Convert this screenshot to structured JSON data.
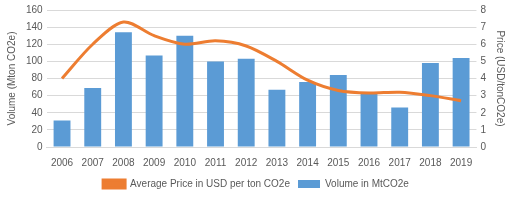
{
  "chart_data": {
    "type": "bar",
    "categories": [
      "2006",
      "2007",
      "2008",
      "2009",
      "2010",
      "2011",
      "2012",
      "2013",
      "2014",
      "2015",
      "2016",
      "2017",
      "2018",
      "2019"
    ],
    "series": [
      {
        "name": "Volume in MtCO2e",
        "type": "bar",
        "color": "#5b9bd5",
        "values": [
          31,
          69,
          134,
          107,
          130,
          100,
          103,
          67,
          76,
          84,
          62,
          46,
          98,
          104
        ]
      },
      {
        "name": "Average Price in USD per ton CO2e",
        "type": "line",
        "color": "#ed7d31",
        "axis": "y2",
        "values": [
          4.0,
          6.0,
          7.3,
          6.5,
          6.0,
          6.2,
          5.9,
          5.0,
          3.9,
          3.3,
          3.15,
          3.2,
          3.0,
          2.7
        ]
      }
    ],
    "y_label": "Volume (Mton CO2e)",
    "y2_label": "Price (USD/tonCO2e)",
    "ylim": [
      0,
      160
    ],
    "yticks": [
      0,
      20,
      40,
      60,
      80,
      100,
      120,
      140,
      160
    ],
    "y2lim": [
      0,
      8
    ],
    "y2ticks": [
      0,
      1,
      2,
      3,
      4,
      5,
      6,
      7,
      8
    ],
    "grid": true,
    "legend": "bottom"
  }
}
